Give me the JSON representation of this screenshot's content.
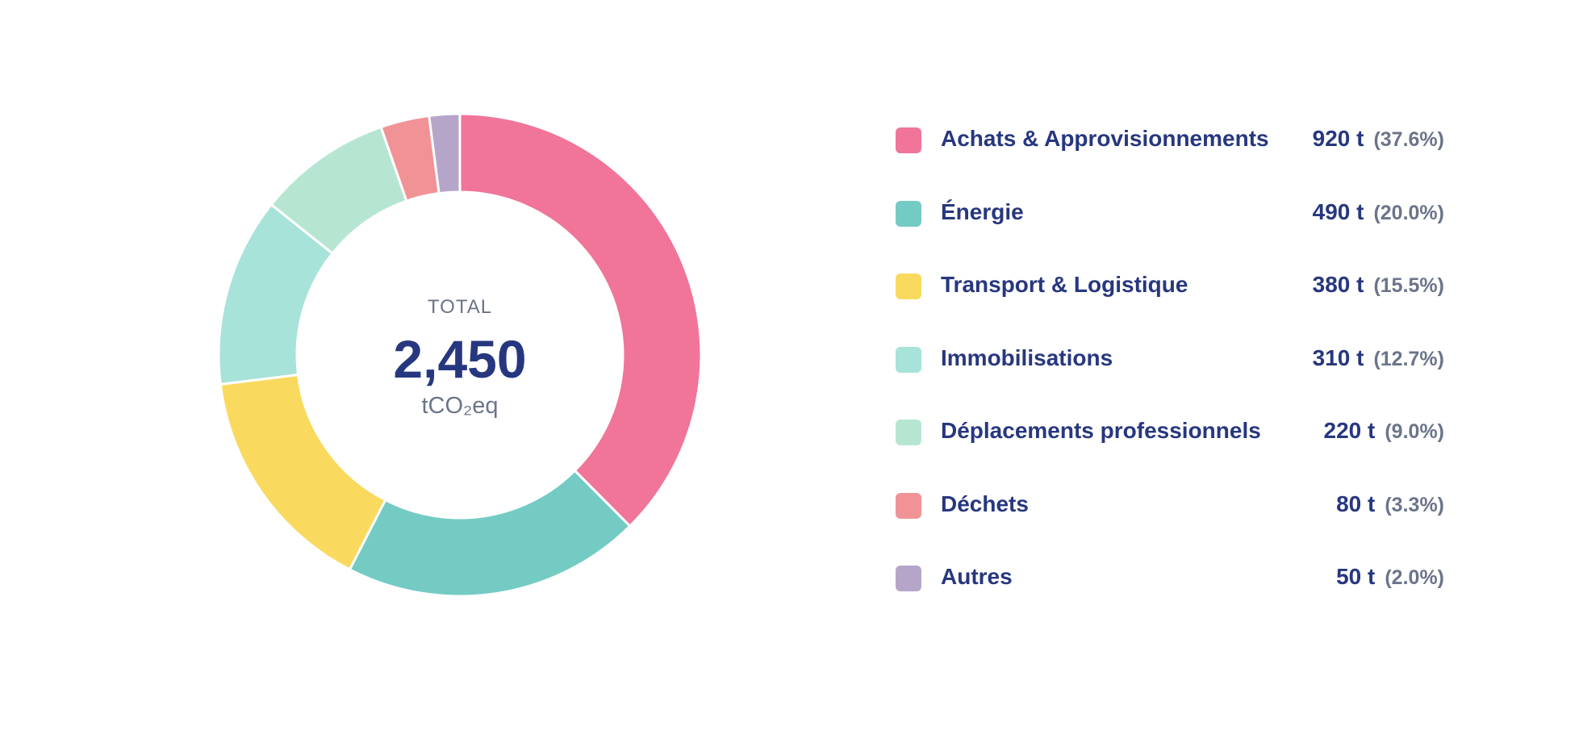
{
  "chart_data": {
    "type": "pie",
    "title": "",
    "total": {
      "label": "TOTAL",
      "value": "2,450",
      "unit": "tCO₂eq"
    },
    "slices": [
      {
        "label": "Achats & Approvisionnements",
        "value": 920,
        "value_label": "920 t",
        "percent_label": "(37.6%)",
        "color": "#f07599"
      },
      {
        "label": "Énergie",
        "value": 490,
        "value_label": "490 t",
        "percent_label": "(20.0%)",
        "color": "#74cbc4"
      },
      {
        "label": "Transport & Logistique",
        "value": 380,
        "value_label": "380 t",
        "percent_label": "(15.5%)",
        "color": "#f9da5f"
      },
      {
        "label": "Immobilisations",
        "value": 310,
        "value_label": "310 t",
        "percent_label": "(12.7%)",
        "color": "#a7e3d8"
      },
      {
        "label": "Déplacements professionnels",
        "value": 220,
        "value_label": "220 t",
        "percent_label": "(9.0%)",
        "color": "#b6e6d2"
      },
      {
        "label": "Déchets",
        "value": 80,
        "value_label": "80 t",
        "percent_label": "(3.3%)",
        "color": "#f19396"
      },
      {
        "label": "Autres",
        "value": 50,
        "value_label": "50 t",
        "percent_label": "(2.0%)",
        "color": "#b5a6c9"
      }
    ],
    "legend_position": "right"
  }
}
